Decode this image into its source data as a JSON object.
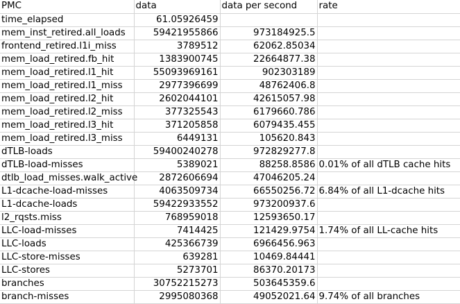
{
  "sheet": {
    "headers": [
      "PMC",
      "data",
      "data per second",
      "rate"
    ],
    "rows": [
      {
        "pmc": "time_elapsed",
        "data": "61.05926459",
        "dps": "",
        "rate": ""
      },
      {
        "pmc": "mem_inst_retired.all_loads",
        "data": "59421955866",
        "dps": "973184925.5",
        "rate": ""
      },
      {
        "pmc": "frontend_retired.l1i_miss",
        "data": "3789512",
        "dps": "62062.85034",
        "rate": ""
      },
      {
        "pmc": "mem_load_retired.fb_hit",
        "data": "1383900745",
        "dps": "22664877.38",
        "rate": ""
      },
      {
        "pmc": "mem_load_retired.l1_hit",
        "data": "55093969161",
        "dps": "902303189",
        "rate": ""
      },
      {
        "pmc": "mem_load_retired.l1_miss",
        "data": "2977396699",
        "dps": "48762406.8",
        "rate": ""
      },
      {
        "pmc": "mem_load_retired.l2_hit",
        "data": "2602044101",
        "dps": "42615057.98",
        "rate": ""
      },
      {
        "pmc": "mem_load_retired.l2_miss",
        "data": "377325543",
        "dps": "6179660.786",
        "rate": ""
      },
      {
        "pmc": "mem_load_retired.l3_hit",
        "data": "371205858",
        "dps": "6079435.455",
        "rate": ""
      },
      {
        "pmc": "mem_load_retired.l3_miss",
        "data": "6449131",
        "dps": "105620.843",
        "rate": ""
      },
      {
        "pmc": "dTLB-loads",
        "data": "59400240278",
        "dps": "972829277.8",
        "rate": ""
      },
      {
        "pmc": "dTLB-load-misses",
        "data": "5389021",
        "dps": "88258.8586",
        "rate": "0.01% of all dTLB cache hits"
      },
      {
        "pmc": "dtlb_load_misses.walk_active",
        "data": "2872606694",
        "dps": "47046205.24",
        "rate": ""
      },
      {
        "pmc": "L1-dcache-load-misses",
        "data": "4063509734",
        "dps": "66550256.72",
        "rate": "6.84% of all L1-dcache hits"
      },
      {
        "pmc": "L1-dcache-loads",
        "data": "59422933552",
        "dps": "973200937.6",
        "rate": ""
      },
      {
        "pmc": "l2_rqsts.miss",
        "data": "768959018",
        "dps": "12593650.17",
        "rate": ""
      },
      {
        "pmc": "LLC-load-misses",
        "data": "7414425",
        "dps": "121429.9754",
        "rate": "1.74% of all LL-cache hits"
      },
      {
        "pmc": "LLC-loads",
        "data": "425366739",
        "dps": "6966456.963",
        "rate": ""
      },
      {
        "pmc": "LLC-store-misses",
        "data": "639281",
        "dps": "10469.84441",
        "rate": ""
      },
      {
        "pmc": "LLC-stores",
        "data": "5273701",
        "dps": "86370.20173",
        "rate": ""
      },
      {
        "pmc": "branches",
        "data": "30752215273",
        "dps": "503645359.6",
        "rate": ""
      },
      {
        "pmc": "branch-misses",
        "data": "2995080368",
        "dps": "49052021.64",
        "rate": "9.74% of all branches"
      }
    ]
  }
}
